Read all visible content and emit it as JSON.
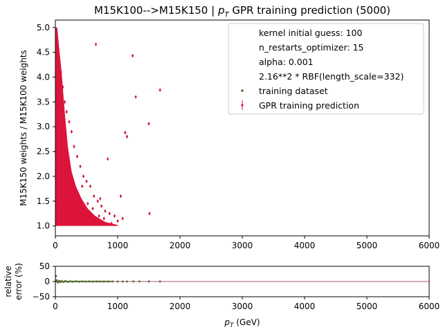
{
  "chart_data": [
    {
      "type": "scatter",
      "title_main": "M15K100-->M15K150 | ",
      "title_var": "p",
      "title_sub": "T",
      "title_tail": " GPR training prediction (5000)",
      "ylabel": "M15K150 weights / M15K100 weights",
      "xlim": [
        0,
        6000
      ],
      "ylim": [
        0.8,
        5.15
      ],
      "xticks": [
        "0",
        "1000",
        "2000",
        "3000",
        "4000",
        "5000",
        "6000"
      ],
      "yticks": [
        "1.0",
        "1.5",
        "2.0",
        "2.5",
        "3.0",
        "3.5",
        "4.0",
        "4.5",
        "5.0"
      ],
      "xtick_values": [
        0,
        1000,
        2000,
        3000,
        4000,
        5000,
        6000
      ],
      "ytick_values": [
        1.0,
        1.5,
        2.0,
        2.5,
        3.0,
        3.5,
        4.0,
        4.5,
        5.0
      ],
      "legend": {
        "position": "top-right",
        "entries": [
          "kernel initial guess: 100",
          "n_restarts_optimizer: 15",
          "alpha: 0.001",
          "2.16**2 * RBF(length_scale=332)",
          "training dataset",
          "GPR training prediction"
        ]
      },
      "colors": {
        "training": "#556b2f",
        "prediction": "#dc143c"
      },
      "series": [
        {
          "name": "training dataset",
          "x": [
            20,
            40,
            60,
            90,
            120,
            150,
            180,
            220,
            260,
            300,
            350,
            400,
            450,
            500,
            560,
            620,
            680,
            740,
            800,
            870,
            950,
            1050,
            1120,
            1150,
            1240,
            1290,
            1500,
            1510,
            1680,
            30,
            50,
            80,
            110,
            140,
            200,
            250,
            320,
            380,
            430,
            520,
            600,
            700,
            780,
            1000,
            1080
          ],
          "y": [
            4.9,
            4.6,
            4.3,
            4.1,
            3.8,
            3.5,
            3.3,
            3.1,
            2.9,
            2.6,
            2.4,
            2.2,
            2.0,
            1.9,
            1.8,
            1.6,
            1.5,
            1.4,
            1.3,
            1.25,
            1.2,
            1.6,
            2.88,
            2.8,
            4.43,
            3.6,
            3.06,
            1.25,
            3.74,
            2.8,
            3.9,
            2.2,
            3.0,
            2.5,
            2.1,
            1.9,
            1.7,
            1.5,
            1.8,
            1.45,
            1.35,
            1.2,
            1.15,
            1.1,
            1.15
          ]
        },
        {
          "name": "GPR training prediction",
          "x": [
            20,
            40,
            60,
            90,
            120,
            150,
            180,
            220,
            260,
            300,
            350,
            400,
            450,
            500,
            560,
            620,
            680,
            740,
            800,
            870,
            950,
            1050,
            1120,
            1150,
            1240,
            1290,
            1500,
            1510,
            1680,
            30,
            50,
            80,
            110,
            140,
            200,
            250,
            320,
            380,
            430,
            520,
            600,
            700,
            780,
            1000,
            1080,
            650,
            720,
            840,
            900
          ],
          "y": [
            4.9,
            4.6,
            4.3,
            4.1,
            3.8,
            3.5,
            3.3,
            3.1,
            2.9,
            2.6,
            2.4,
            2.2,
            2.0,
            1.9,
            1.8,
            1.6,
            1.5,
            1.4,
            1.3,
            1.25,
            1.2,
            1.6,
            2.88,
            2.8,
            4.43,
            3.6,
            3.06,
            1.25,
            3.74,
            2.8,
            3.9,
            2.2,
            3.0,
            2.5,
            2.1,
            1.9,
            1.7,
            1.5,
            1.8,
            1.45,
            1.35,
            1.2,
            1.15,
            1.1,
            1.15,
            4.66,
            1.55,
            2.35,
            1.05
          ]
        }
      ]
    },
    {
      "type": "scatter",
      "xlabel_var": "p",
      "xlabel_sub": "T",
      "xlabel_tail": " (GeV)",
      "ylabel_line1": "relative",
      "ylabel_line2": "error (%)",
      "xlim": [
        0,
        6000
      ],
      "ylim": [
        -50,
        50
      ],
      "xticks": [
        "0",
        "1000",
        "2000",
        "3000",
        "4000",
        "5000",
        "6000"
      ],
      "yticks": [
        "50",
        "0",
        "−50"
      ],
      "xtick_values": [
        0,
        1000,
        2000,
        3000,
        4000,
        5000,
        6000
      ],
      "ytick_values": [
        50,
        0,
        -50
      ],
      "reference_line": 0,
      "series": [
        {
          "name": "relative error",
          "x": [
            10,
            20,
            40,
            60,
            80,
            100,
            130,
            160,
            200,
            240,
            280,
            330,
            380,
            430,
            480,
            540,
            600,
            660,
            720,
            780,
            850,
            920,
            1000,
            1080,
            1150,
            1250,
            1350,
            1500,
            1680
          ],
          "y": [
            18,
            4,
            -3,
            2,
            -2,
            1,
            -1,
            1.5,
            -1,
            0.5,
            -0.5,
            0.8,
            -0.6,
            0.4,
            -0.3,
            0.2,
            -0.2,
            0.3,
            -0.1,
            0.1,
            0,
            0.1,
            -0.1,
            0,
            0,
            0,
            0,
            0,
            0
          ]
        }
      ]
    }
  ]
}
